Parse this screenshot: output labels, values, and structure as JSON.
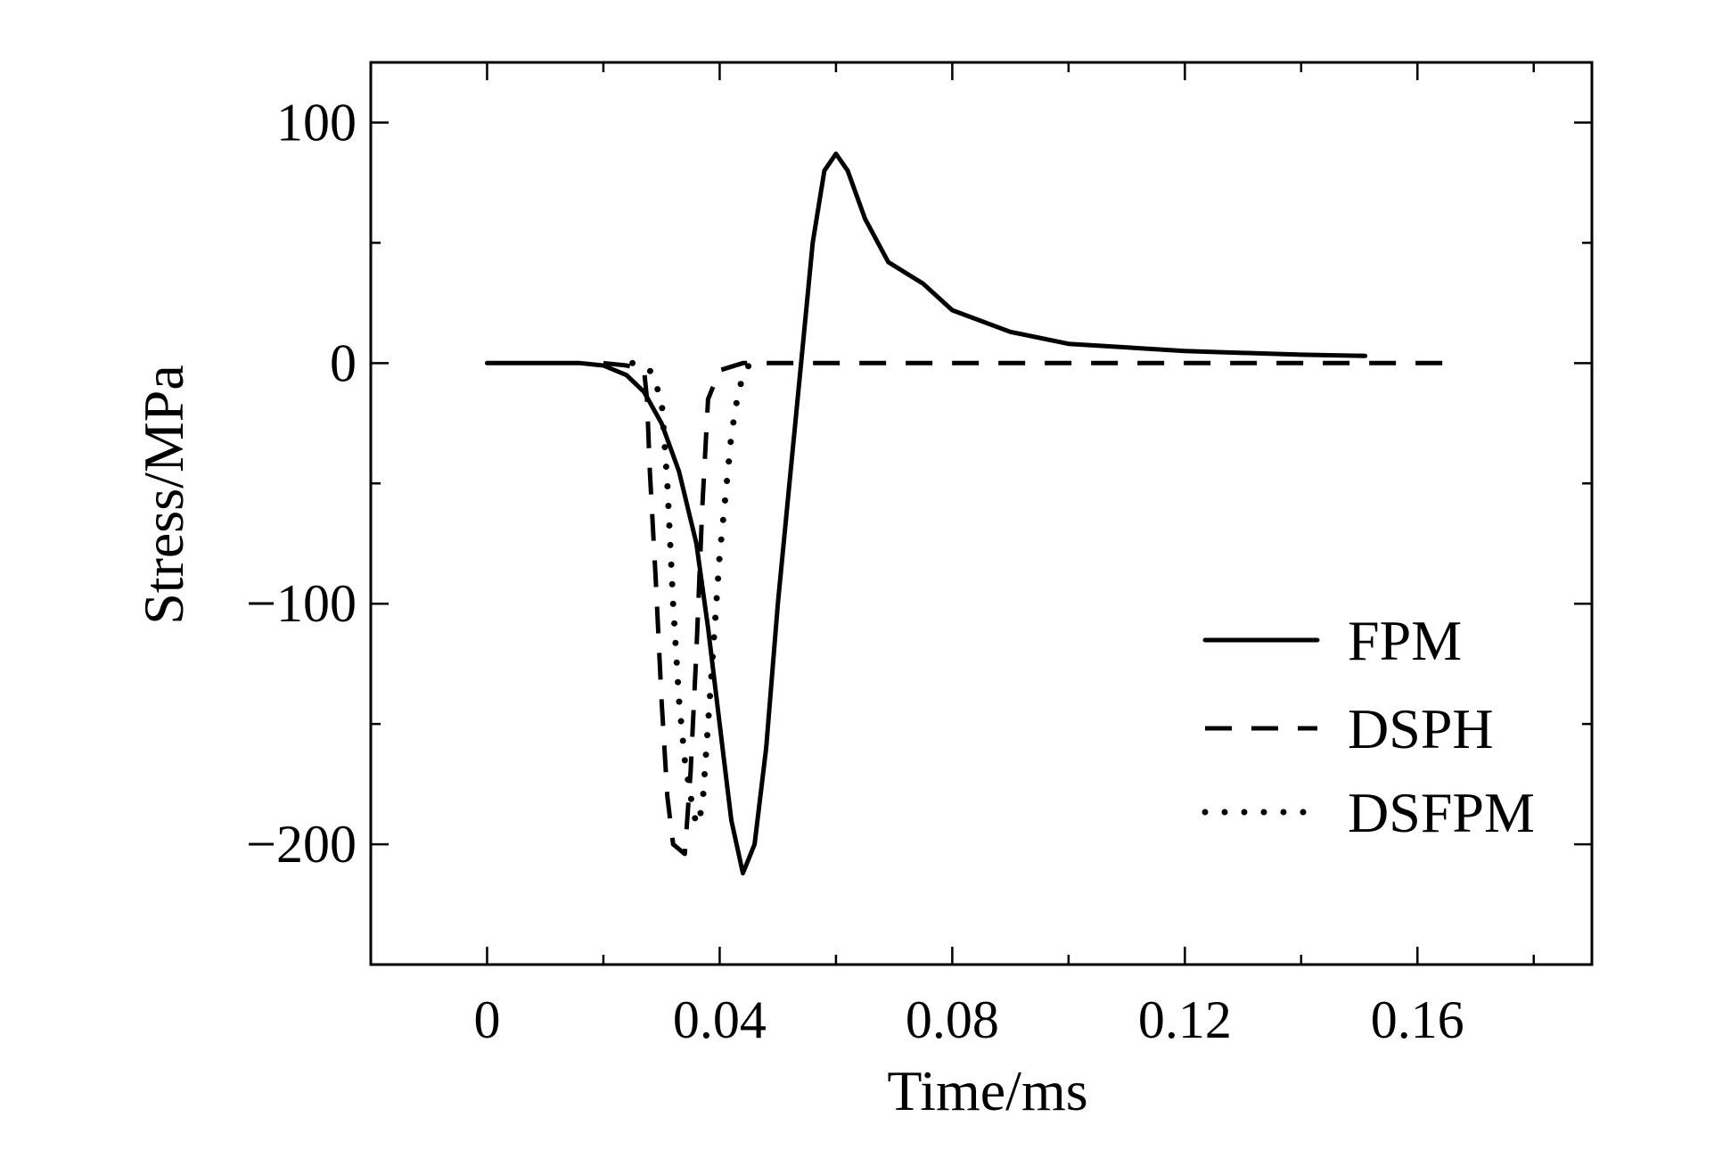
{
  "chart_data": {
    "type": "line",
    "xlabel": "Time/ms",
    "ylabel": "Stress/MPa",
    "xlim": [
      -0.02,
      0.19
    ],
    "ylim": [
      -250,
      125
    ],
    "xticks": [
      {
        "value": 0,
        "label": "0"
      },
      {
        "value": 0.04,
        "label": "0.04"
      },
      {
        "value": 0.08,
        "label": "0.08"
      },
      {
        "value": 0.12,
        "label": "0.12"
      },
      {
        "value": 0.16,
        "label": "0.16"
      }
    ],
    "xminor": [
      -0.02,
      0.02,
      0.06,
      0.1,
      0.14,
      0.18
    ],
    "yticks": [
      {
        "value": 100,
        "label": "100"
      },
      {
        "value": 0,
        "label": "0"
      },
      {
        "value": -100,
        "label": "−100"
      },
      {
        "value": -200,
        "label": "−200"
      }
    ],
    "yminor": [
      50,
      -50,
      -150
    ],
    "legend_position": "lower-right",
    "series": [
      {
        "name": "FPM",
        "style": "solid",
        "color": "#000000",
        "points": [
          [
            0,
            0
          ],
          [
            0.01,
            0
          ],
          [
            0.016,
            0
          ],
          [
            0.02,
            -1
          ],
          [
            0.024,
            -5
          ],
          [
            0.027,
            -12
          ],
          [
            0.03,
            -25
          ],
          [
            0.033,
            -45
          ],
          [
            0.036,
            -75
          ],
          [
            0.038,
            -110
          ],
          [
            0.04,
            -150
          ],
          [
            0.042,
            -190
          ],
          [
            0.044,
            -212
          ],
          [
            0.046,
            -200
          ],
          [
            0.048,
            -160
          ],
          [
            0.05,
            -100
          ],
          [
            0.052,
            -50
          ],
          [
            0.054,
            0
          ],
          [
            0.056,
            50
          ],
          [
            0.058,
            80
          ],
          [
            0.06,
            87
          ],
          [
            0.062,
            80
          ],
          [
            0.065,
            60
          ],
          [
            0.069,
            42
          ],
          [
            0.075,
            33
          ],
          [
            0.08,
            22
          ],
          [
            0.09,
            13
          ],
          [
            0.1,
            8
          ],
          [
            0.12,
            5
          ],
          [
            0.14,
            3.5
          ],
          [
            0.151,
            3
          ]
        ]
      },
      {
        "name": "DSPH",
        "style": "dashed",
        "color": "#000000",
        "points": [
          [
            0.02,
            0
          ],
          [
            0.024,
            -1
          ],
          [
            0.027,
            -3
          ],
          [
            0.0275,
            -15
          ],
          [
            0.028,
            -45
          ],
          [
            0.029,
            -90
          ],
          [
            0.03,
            -140
          ],
          [
            0.031,
            -180
          ],
          [
            0.032,
            -200
          ],
          [
            0.034,
            -204
          ],
          [
            0.035,
            -170
          ],
          [
            0.036,
            -120
          ],
          [
            0.037,
            -60
          ],
          [
            0.038,
            -15
          ],
          [
            0.04,
            -3
          ],
          [
            0.044,
            0
          ],
          [
            0.06,
            0
          ],
          [
            0.08,
            0
          ],
          [
            0.1,
            0
          ],
          [
            0.12,
            0
          ],
          [
            0.14,
            0
          ],
          [
            0.167,
            0
          ]
        ]
      },
      {
        "name": "DSFPM",
        "style": "dotted",
        "color": "#000000",
        "points": [
          [
            0.025,
            0
          ],
          [
            0.028,
            -3
          ],
          [
            0.03,
            -15
          ],
          [
            0.031,
            -50
          ],
          [
            0.032,
            -100
          ],
          [
            0.033,
            -140
          ],
          [
            0.034,
            -165
          ],
          [
            0.035,
            -180
          ],
          [
            0.036,
            -192
          ],
          [
            0.037,
            -185
          ],
          [
            0.038,
            -150
          ],
          [
            0.039,
            -115
          ],
          [
            0.04,
            -80
          ],
          [
            0.041,
            -55
          ],
          [
            0.042,
            -30
          ],
          [
            0.043,
            -15
          ],
          [
            0.044,
            -5
          ],
          [
            0.045,
            -1
          ]
        ]
      }
    ]
  }
}
